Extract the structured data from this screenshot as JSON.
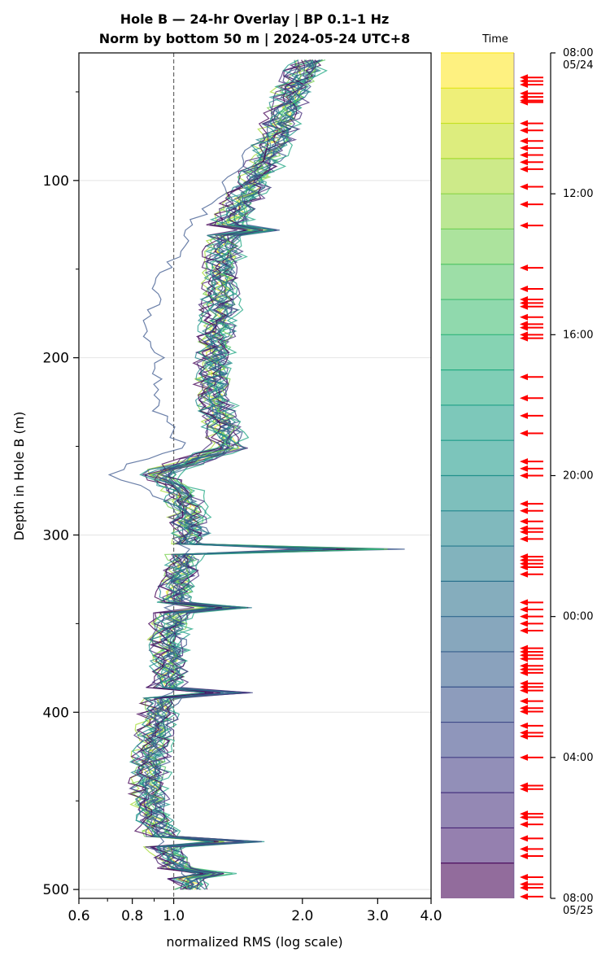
{
  "chart_data": {
    "type": "line",
    "title_line1": "Hole B — 24-hr Overlay  |  BP 0.1–1 Hz",
    "title_line2": "Norm by bottom 50 m  |  2024-05-24 UTC+8",
    "xlabel": "normalized RMS  (log scale)",
    "ylabel": "Depth in Hole B (m)",
    "x_scale": "log",
    "xlim": [
      0.6,
      4.0
    ],
    "ylim": [
      505,
      28
    ],
    "x_ticks": [
      0.6,
      0.8,
      1.0,
      2.0,
      3.0,
      4.0
    ],
    "x_tick_labels": [
      "0.6",
      "0.8",
      "1.0",
      "2.0",
      "3.0",
      "4.0"
    ],
    "y_ticks": [
      100,
      200,
      300,
      400,
      500
    ],
    "y_tick_labels": [
      "100",
      "200",
      "300",
      "400",
      "500"
    ],
    "reference_line_x": 1.0,
    "grid": "horizontal",
    "depth_min": 32,
    "depth_step": 3,
    "depth_count": 157,
    "series_count": 24,
    "profile_keypoints": {
      "depth": [
        32,
        50,
        75,
        100,
        125,
        150,
        175,
        200,
        225,
        250,
        265,
        275,
        300,
        310,
        320,
        340,
        360,
        380,
        400,
        420,
        440,
        460,
        470,
        480,
        497
      ],
      "value": [
        2.1,
        1.9,
        1.75,
        1.55,
        1.35,
        1.3,
        1.28,
        1.25,
        1.25,
        1.35,
        0.92,
        1.05,
        1.1,
        1.05,
        1.05,
        1.0,
        0.98,
        0.98,
        0.93,
        0.9,
        0.88,
        0.9,
        0.93,
        0.98,
        1.1
      ]
    },
    "spikes": [
      {
        "depth": 128,
        "value": 1.7
      },
      {
        "depth": 251,
        "value": 1.35
      },
      {
        "depth": 308,
        "value": 3.3
      },
      {
        "depth": 341,
        "value": 1.5
      },
      {
        "depth": 389,
        "value": 1.5
      },
      {
        "depth": 472,
        "value": 1.6
      },
      {
        "depth": 491,
        "value": 1.3
      }
    ],
    "outlier_series": {
      "depth": [
        32,
        80,
        120,
        150,
        160,
        175,
        185,
        200,
        230,
        250,
        258,
        262,
        267,
        272,
        285,
        300
      ],
      "value": [
        2.1,
        1.55,
        1.15,
        0.95,
        0.92,
        0.88,
        0.86,
        0.92,
        0.92,
        1.05,
        0.85,
        0.74,
        0.72,
        0.85,
        1.0,
        1.05
      ]
    },
    "series_colors": [
      "#fde725",
      "#d2e21b",
      "#a5db36",
      "#7ad151",
      "#54c568",
      "#35b779",
      "#22a884",
      "#1f988b",
      "#23888e",
      "#2a788e",
      "#31688e",
      "#39568c",
      "#414487",
      "#472d7b",
      "#481a6c",
      "#440154",
      "#7ad151",
      "#22a884",
      "#2a788e",
      "#414487",
      "#440154",
      "#472d7b",
      "#31688e",
      "#1f988b"
    ],
    "colorbar": {
      "title": "Time",
      "tick_labels": [
        "08:00\n05/24",
        "12:00",
        "16:00",
        "20:00",
        "00:00",
        "04:00",
        "08:00\n05/25"
      ],
      "tick_hours": [
        0,
        4,
        8,
        12,
        16,
        20,
        24
      ],
      "bands": 24,
      "colors": [
        "#fde725",
        "#e2e418",
        "#c5e021",
        "#a8db34",
        "#8bd646",
        "#70cf57",
        "#56c667",
        "#40bd72",
        "#2fb47c",
        "#25ab82",
        "#1fa188",
        "#1e9b8a",
        "#21918c",
        "#24868e",
        "#287c8e",
        "#2c728e",
        "#31688e",
        "#355f8d",
        "#3a548c",
        "#3e4a89",
        "#433e85",
        "#46327e",
        "#482475",
        "#440154"
      ]
    },
    "arrow_times_hours": [
      0.7,
      0.8,
      0.9,
      1.15,
      1.25,
      1.35,
      1.4,
      2.0,
      2.2,
      2.5,
      2.7,
      2.9,
      3.1,
      3.3,
      3.8,
      4.3,
      4.9,
      6.1,
      6.7,
      7.0,
      7.1,
      7.2,
      7.5,
      7.7,
      7.8,
      8.0,
      8.1,
      9.2,
      9.8,
      10.3,
      10.8,
      11.6,
      11.8,
      12.0,
      12.8,
      13.0,
      13.3,
      13.5,
      13.6,
      13.8,
      14.3,
      14.4,
      14.5,
      14.6,
      14.8,
      15.6,
      15.8,
      16.0,
      16.2,
      16.4,
      16.9,
      17.0,
      17.1,
      17.2,
      17.4,
      17.5,
      17.6,
      17.9,
      18.0,
      18.1,
      18.4,
      18.6,
      18.7,
      19.1,
      19.3,
      19.4,
      20.0,
      20.8,
      20.9,
      21.6,
      21.7,
      21.9,
      22.3,
      22.6,
      22.8,
      23.4,
      23.6,
      23.7,
      23.95
    ]
  }
}
